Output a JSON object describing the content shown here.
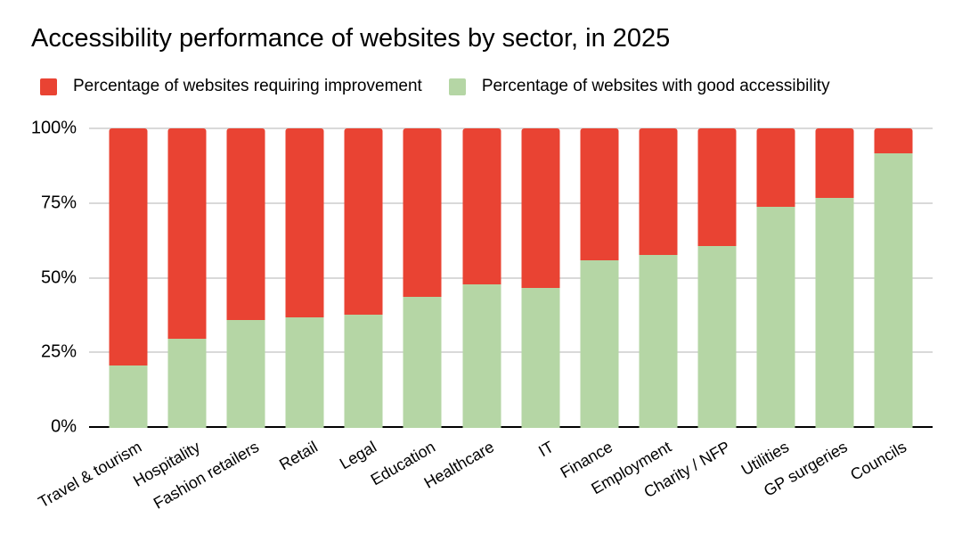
{
  "title": "Accessibility performance of websites by sector, in 2025",
  "legend": {
    "items": [
      {
        "label": "Percentage of websites requiring improvement",
        "color": "#e94333"
      },
      {
        "label": "Percentage of websites with good accessibility",
        "color": "#b5d6a5"
      }
    ]
  },
  "axes": {
    "y_tick_labels": [
      "100%",
      "75%",
      "50%",
      "25%",
      "0%"
    ],
    "y_tick_values": [
      100,
      75,
      50,
      25,
      0
    ],
    "grid_color": "#d9d9d9",
    "baseline_color": "#000000"
  },
  "chart_data": {
    "type": "bar",
    "stacked": true,
    "title": "Accessibility performance of websites by sector, in 2025",
    "categories": [
      "Travel & tourism",
      "Hospitality",
      "Fashion retailers",
      "Retail",
      "Legal",
      "Education",
      "Healthcare",
      "IT",
      "Finance",
      "Employment",
      "Charity / NFP",
      "Utilities",
      "GP surgeries",
      "Councils"
    ],
    "series": [
      {
        "name": "Percentage of websites requiring improvement",
        "color": "#e94333",
        "values": [
          79,
          70,
          64,
          63,
          62,
          56,
          52,
          53,
          44,
          42,
          39,
          26,
          23,
          8
        ]
      },
      {
        "name": "Percentage of websites with good accessibility",
        "color": "#b5d6a5",
        "values": [
          21,
          30,
          36,
          37,
          38,
          44,
          48,
          47,
          56,
          58,
          61,
          74,
          77,
          92
        ]
      }
    ],
    "xlabel": "",
    "ylabel": "",
    "ylim": [
      0,
      100
    ],
    "y_tick_labels": [
      "0%",
      "25%",
      "50%",
      "75%",
      "100%"
    ],
    "grid": true,
    "legend_position": "top"
  }
}
